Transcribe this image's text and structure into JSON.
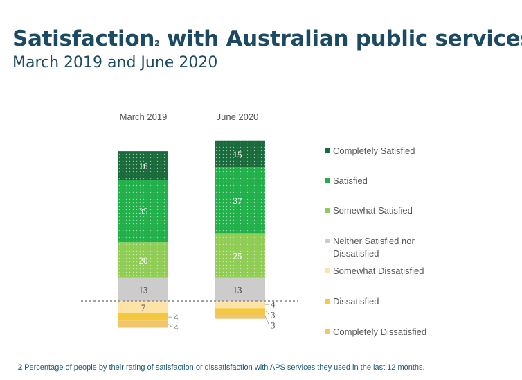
{
  "header": {
    "title_main": "Satisfaction",
    "title_sup": "2",
    "title_rest": " with Australian public services",
    "subtitle": "March 2019 and June 2020"
  },
  "footnote": {
    "number": "2",
    "text": " Percentage of people by their rating of satisfaction or dissatisfaction with APS services they used in the last 12 months."
  },
  "chart_data": {
    "type": "bar",
    "stacked": "diverging",
    "categories": [
      "March 2019",
      "June 2020"
    ],
    "series": [
      {
        "name": "Completely Satisfied",
        "values": [
          16,
          15
        ],
        "color": "#1a6b3c",
        "side": "positive"
      },
      {
        "name": "Satisfied",
        "values": [
          35,
          37
        ],
        "color": "#22b04b",
        "side": "positive"
      },
      {
        "name": "Somewhat Satisfied",
        "values": [
          20,
          25
        ],
        "color": "#8fcd55",
        "side": "positive"
      },
      {
        "name": "Neither Satisfied nor Dissatisfied",
        "values": [
          13,
          13
        ],
        "color": "#cccccc",
        "side": "positive"
      },
      {
        "name": "Somewhat Dissatisfied",
        "values": [
          7,
          4
        ],
        "color": "#fde3a6",
        "side": "negative"
      },
      {
        "name": "Dissatisfied",
        "values": [
          4,
          3
        ],
        "color": "#f5c93e",
        "side": "negative"
      },
      {
        "name": "Completely Dissatisfied",
        "values": [
          4,
          3
        ],
        "color": "#f0c66a",
        "side": "negative"
      }
    ],
    "legend": "right",
    "grid": false
  }
}
